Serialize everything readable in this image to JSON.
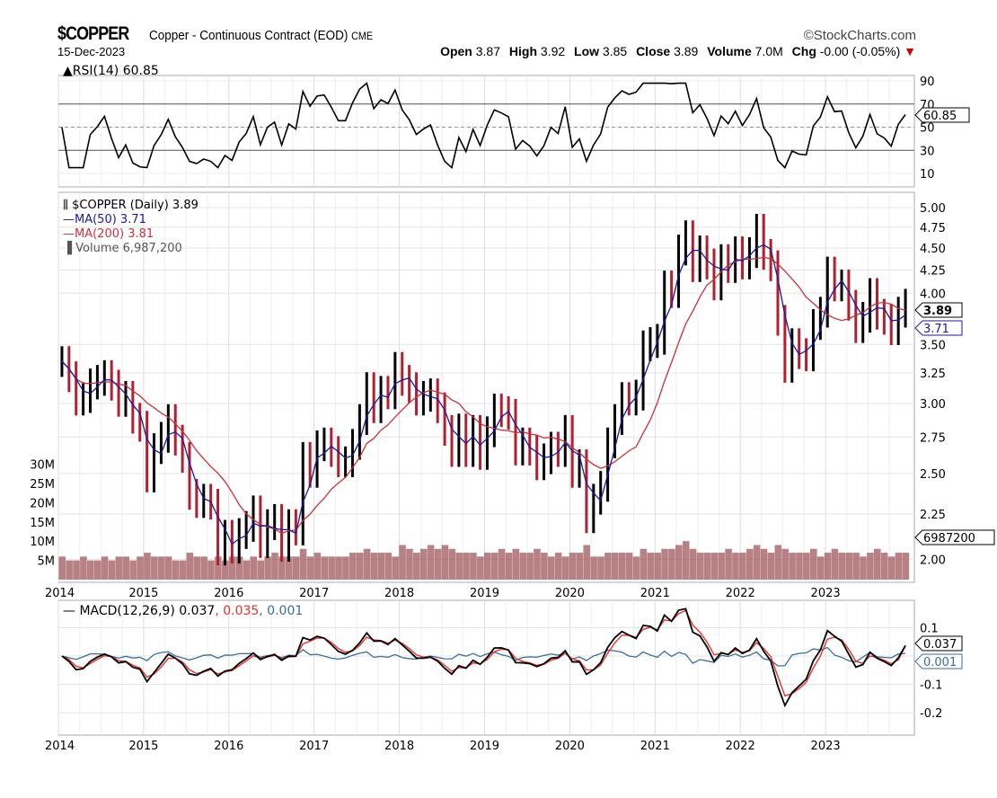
{
  "header": {
    "symbol": "$COPPER",
    "description": "Copper - Continuous Contract (EOD)",
    "exchange": "CME",
    "brand": "©StockCharts.com",
    "date": "15-Dec-2023",
    "open_label": "Open",
    "open": "3.87",
    "high_label": "High",
    "high": "3.92",
    "low_label": "Low",
    "low": "3.85",
    "close_label": "Close",
    "close": "3.89",
    "volume_label": "Volume",
    "volume": "7.0M",
    "chg_label": "Chg",
    "chg": "-0.00 (-0.05%)",
    "chg_arrow": "▼"
  },
  "chart_data": [
    {
      "type": "line",
      "panel": "rsi",
      "legend": "RSI(14) 60.85",
      "current_value": "60.85",
      "ylim": [
        0,
        100
      ],
      "yticks": [
        "90",
        "70",
        "50",
        "30",
        "10"
      ],
      "reference_lines": [
        30,
        50,
        70
      ]
    },
    {
      "type": "ohlc",
      "panel": "price",
      "scale": "log",
      "ylim": [
        1.95,
        5.1
      ],
      "yticks": [
        "5.00",
        "4.75",
        "4.50",
        "4.25",
        "4.00",
        "3.50",
        "3.25",
        "3.00",
        "2.75",
        "2.50",
        "2.25",
        "2.00"
      ],
      "xticks": [
        "2014",
        "2015",
        "2016",
        "2017",
        "2018",
        "2019",
        "2020",
        "2021",
        "2022",
        "2023"
      ],
      "grid": true,
      "legend": {
        "price": "$COPPER (Daily) 3.89",
        "ma50": "MA(50) 3.71",
        "ma200": "MA(200) 3.81",
        "volume": "Volume 6,987,200"
      },
      "current_price": "3.89",
      "current_ma50": "3.71",
      "current_volume": "6987200",
      "colors": {
        "price": "#000000",
        "ma50": "#1a1a9c",
        "ma200": "#c8323c",
        "volume": "#a0585c"
      },
      "monthly_close": [
        3.35,
        3.22,
        3.03,
        3.05,
        3.16,
        3.19,
        3.23,
        3.15,
        3.02,
        3.06,
        2.89,
        2.83,
        2.48,
        2.67,
        2.75,
        2.88,
        2.73,
        2.61,
        2.37,
        2.32,
        2.34,
        2.31,
        2.05,
        2.13,
        2.06,
        2.14,
        2.18,
        2.27,
        2.09,
        2.19,
        2.22,
        2.07,
        2.19,
        2.16,
        2.61,
        2.51,
        2.69,
        2.71,
        2.65,
        2.58,
        2.58,
        2.7,
        2.88,
        3.13,
        2.97,
        3.1,
        3.08,
        3.3,
        3.19,
        3.13,
        3.03,
        3.06,
        3.08,
        2.97,
        2.8,
        2.65,
        2.81,
        2.65,
        2.8,
        2.63,
        2.79,
        2.96,
        2.94,
        2.92,
        2.66,
        2.71,
        2.66,
        2.56,
        2.6,
        2.68,
        2.65,
        2.8,
        2.51,
        2.56,
        2.23,
        2.34,
        2.42,
        2.71,
        2.88,
        3.05,
        3.03,
        3.07,
        3.49,
        3.52,
        3.55,
        4.08,
        4.01,
        4.48,
        4.65,
        4.29,
        4.47,
        4.32,
        4.09,
        4.37,
        4.28,
        4.46,
        4.32,
        4.45,
        4.73,
        4.43,
        4.3,
        3.73,
        3.3,
        3.51,
        3.42,
        3.4,
        3.69,
        3.81,
        4.23,
        4.08,
        4.09,
        3.88,
        3.66,
        3.76,
        4.0,
        3.79,
        3.74,
        3.64,
        3.81,
        3.89
      ],
      "volume_yticks": [
        "30M",
        "25M",
        "20M",
        "15M",
        "10M",
        "5M"
      ],
      "monthly_volume_millions": [
        6,
        5,
        5,
        6,
        5,
        5,
        6,
        5,
        6,
        6,
        5,
        6,
        7,
        6,
        6,
        6,
        5,
        5,
        7,
        6,
        6,
        5,
        6,
        5,
        6,
        6,
        5,
        6,
        5,
        6,
        7,
        6,
        6,
        6,
        8,
        6,
        7,
        6,
        6,
        6,
        6,
        7,
        7,
        8,
        7,
        7,
        7,
        6,
        9,
        8,
        7,
        8,
        9,
        8,
        9,
        8,
        7,
        7,
        7,
        6,
        7,
        7,
        8,
        7,
        8,
        7,
        7,
        8,
        7,
        6,
        7,
        6,
        7,
        7,
        9,
        6,
        6,
        7,
        7,
        7,
        7,
        6,
        8,
        7,
        7,
        8,
        8,
        9,
        10,
        8,
        7,
        7,
        7,
        7,
        8,
        7,
        7,
        8,
        9,
        8,
        7,
        9,
        8,
        7,
        7,
        7,
        8,
        6,
        7,
        8,
        7,
        7,
        7,
        6,
        7,
        8,
        7,
        6,
        7,
        7
      ]
    },
    {
      "type": "line",
      "panel": "macd",
      "legend": {
        "label": "MACD(12,26,9)",
        "macd": "0.037",
        "signal": "0.035",
        "histogram": "0.001"
      },
      "yticks": [
        "0.1",
        "-0.1",
        "-0.2"
      ],
      "ylim": [
        -0.27,
        0.2
      ],
      "xticks": [
        "2014",
        "2015",
        "2016",
        "2017",
        "2018",
        "2019",
        "2020",
        "2021",
        "2022",
        "2023"
      ],
      "colors": {
        "macd": "#000000",
        "signal": "#e8322c",
        "histogram": "#3a6e9a"
      }
    }
  ]
}
